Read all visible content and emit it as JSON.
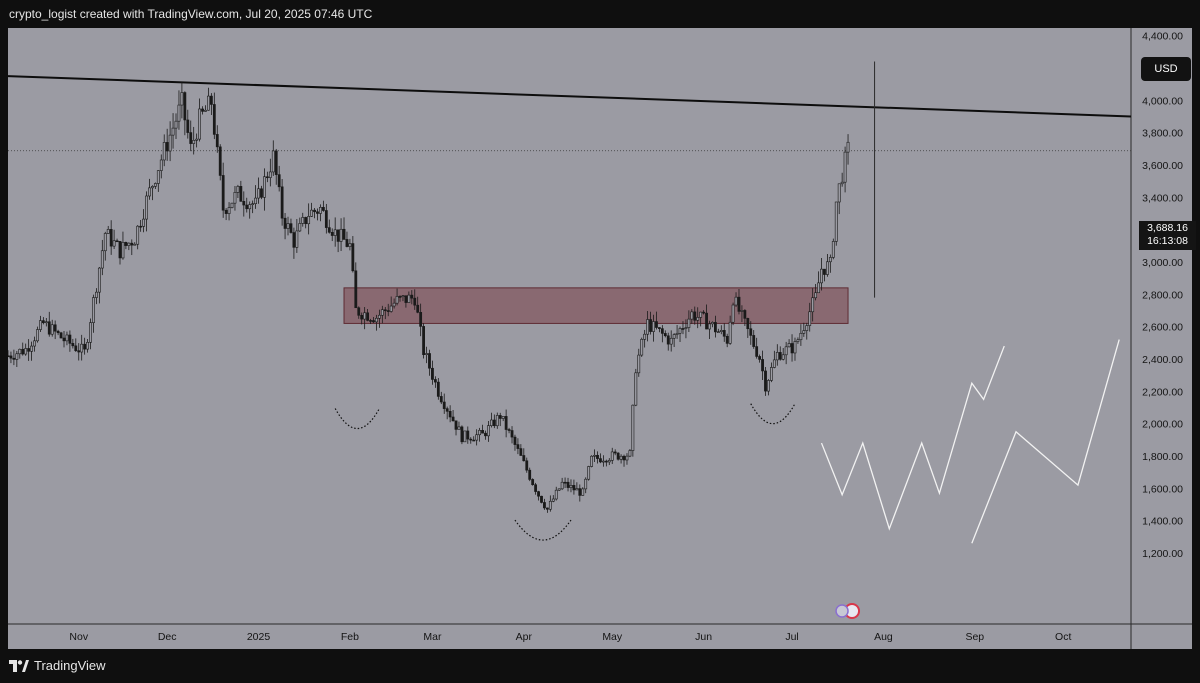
{
  "header": {
    "attribution": "crypto_logist created with TradingView.com, Jul 20, 2025 07:46 UTC"
  },
  "footer": {
    "brand": "TradingView"
  },
  "price_axis": {
    "currency_button": "USD",
    "last_price": "3,688.16",
    "countdown": "16:13:08"
  },
  "colors": {
    "background": "#9b9ba3",
    "candle": "#1a1a1a",
    "trendline": "#0d0d0d",
    "zone_fill": "#7a4048",
    "projection": "#f2f2f2",
    "frame": "#0f0f0f"
  },
  "chart_data": {
    "type": "candlestick",
    "title": "",
    "xlabel": "",
    "ylabel": "",
    "y_range": [
      1000,
      4600
    ],
    "x_range": [
      "2024-10-08",
      "2025-10-24"
    ],
    "grid": false,
    "x_tick_labels": [
      {
        "date": "2024-11-01",
        "label": "Nov"
      },
      {
        "date": "2024-12-01",
        "label": "Dec"
      },
      {
        "date": "2025-01-01",
        "label": "2025"
      },
      {
        "date": "2025-02-01",
        "label": "Feb"
      },
      {
        "date": "2025-03-01",
        "label": "Mar"
      },
      {
        "date": "2025-04-01",
        "label": "Apr"
      },
      {
        "date": "2025-05-01",
        "label": "May"
      },
      {
        "date": "2025-06-01",
        "label": "Jun"
      },
      {
        "date": "2025-07-01",
        "label": "Jul"
      },
      {
        "date": "2025-08-01",
        "label": "Aug"
      },
      {
        "date": "2025-09-01",
        "label": "Sep"
      },
      {
        "date": "2025-10-01",
        "label": "Oct"
      }
    ],
    "y_tick_labels": [
      "1,200.00",
      "1,400.00",
      "1,600.00",
      "1,800.00",
      "2,000.00",
      "2,200.00",
      "2,400.00",
      "2,600.00",
      "2,800.00",
      "3,000.00",
      "3,200.00",
      "3,400.00",
      "3,600.00",
      "3,800.00",
      "4,000.00",
      "4,200.00",
      "4,400.00"
    ],
    "y_tick_values": [
      1200,
      1400,
      1600,
      1800,
      2000,
      2200,
      2400,
      2600,
      2800,
      3000,
      3200,
      3400,
      3600,
      3800,
      4000,
      4200,
      4400
    ],
    "price_path": [
      [
        "2024-10-08",
        2420
      ],
      [
        "2024-10-14",
        2460
      ],
      [
        "2024-10-20",
        2620
      ],
      [
        "2024-10-27",
        2520
      ],
      [
        "2024-11-03",
        2440
      ],
      [
        "2024-11-10",
        3180
      ],
      [
        "2024-11-15",
        3070
      ],
      [
        "2024-11-20",
        3150
      ],
      [
        "2024-11-24",
        3380
      ],
      [
        "2024-11-28",
        3590
      ],
      [
        "2024-12-06",
        3980
      ],
      [
        "2024-12-09",
        3700
      ],
      [
        "2024-12-12",
        3880
      ],
      [
        "2024-12-16",
        3990
      ],
      [
        "2024-12-20",
        3330
      ],
      [
        "2024-12-25",
        3420
      ],
      [
        "2024-12-31",
        3350
      ],
      [
        "2025-01-06",
        3650
      ],
      [
        "2025-01-09",
        3290
      ],
      [
        "2025-01-13",
        3130
      ],
      [
        "2025-01-18",
        3300
      ],
      [
        "2025-01-22",
        3330
      ],
      [
        "2025-01-27",
        3180
      ],
      [
        "2025-02-01",
        3100
      ],
      [
        "2025-02-03",
        2700
      ],
      [
        "2025-02-10",
        2660
      ],
      [
        "2025-02-17",
        2760
      ],
      [
        "2025-02-23",
        2780
      ],
      [
        "2025-02-26",
        2450
      ],
      [
        "2025-03-03",
        2200
      ],
      [
        "2025-03-11",
        1920
      ],
      [
        "2025-03-18",
        1930
      ],
      [
        "2025-03-24",
        2050
      ],
      [
        "2025-03-30",
        1830
      ],
      [
        "2025-04-06",
        1560
      ],
      [
        "2025-04-09",
        1470
      ],
      [
        "2025-04-14",
        1630
      ],
      [
        "2025-04-21",
        1570
      ],
      [
        "2025-04-24",
        1780
      ],
      [
        "2025-05-01",
        1800
      ],
      [
        "2025-05-07",
        1810
      ],
      [
        "2025-05-09",
        2350
      ],
      [
        "2025-05-13",
        2620
      ],
      [
        "2025-05-21",
        2510
      ],
      [
        "2025-05-28",
        2680
      ],
      [
        "2025-06-03",
        2620
      ],
      [
        "2025-06-09",
        2520
      ],
      [
        "2025-06-11",
        2780
      ],
      [
        "2025-06-17",
        2530
      ],
      [
        "2025-06-20",
        2410
      ],
      [
        "2025-06-22",
        2240
      ],
      [
        "2025-06-26",
        2430
      ],
      [
        "2025-07-02",
        2480
      ],
      [
        "2025-07-09",
        2780
      ],
      [
        "2025-07-11",
        2960
      ],
      [
        "2025-07-14",
        2980
      ],
      [
        "2025-07-16",
        3370
      ],
      [
        "2025-07-18",
        3550
      ],
      [
        "2025-07-20",
        3688
      ]
    ],
    "resistance_line": [
      [
        "2024-10-08",
        4150
      ],
      [
        "2025-10-24",
        3900
      ]
    ],
    "demand_zone": {
      "start": "2025-01-30",
      "end": "2025-07-20",
      "low": 2620,
      "high": 2840
    },
    "last_price": 3688.16,
    "projected_range": {
      "date": "2025-07-29",
      "low": 2780,
      "high": 4240
    },
    "arcs": [
      {
        "start": "2025-01-27",
        "end": "2025-02-11",
        "bottom": 1970
      },
      {
        "start": "2025-03-29",
        "end": "2025-04-17",
        "bottom": 1280
      },
      {
        "start": "2025-06-17",
        "end": "2025-07-02",
        "bottom": 2000
      }
    ],
    "projection_a": [
      [
        "2025-07-11",
        1880
      ],
      [
        "2025-07-18",
        1560
      ],
      [
        "2025-07-25",
        1880
      ],
      [
        "2025-08-03",
        1350
      ],
      [
        "2025-08-14",
        1880
      ],
      [
        "2025-08-20",
        1570
      ],
      [
        "2025-08-31",
        2250
      ],
      [
        "2025-09-04",
        2150
      ],
      [
        "2025-09-11",
        2480
      ]
    ],
    "projection_b": [
      [
        "2025-08-31",
        1260
      ],
      [
        "2025-09-15",
        1950
      ],
      [
        "2025-10-06",
        1620
      ],
      [
        "2025-10-20",
        2520
      ]
    ]
  }
}
